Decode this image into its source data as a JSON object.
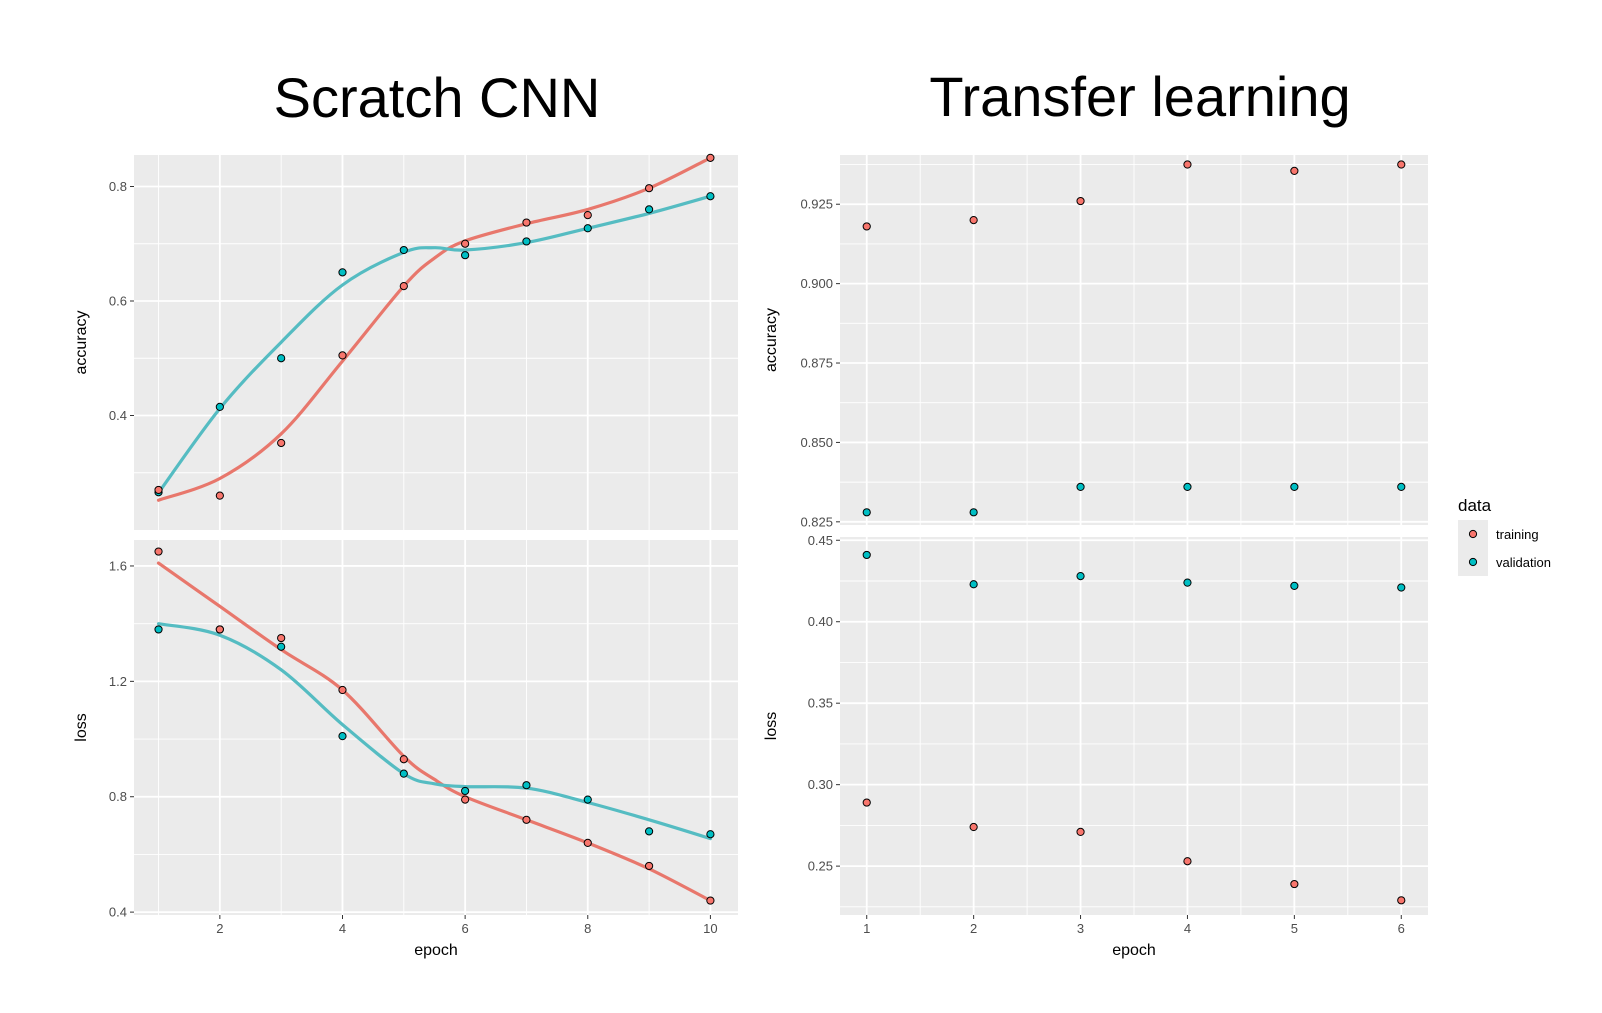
{
  "colors": {
    "training": "#F8766D",
    "validation": "#00BFC4",
    "training_line": "#E8776C",
    "validation_line": "#55BCC2"
  },
  "legend": {
    "title": "data",
    "entries": [
      "training",
      "validation"
    ]
  },
  "chart_data": [
    {
      "type": "scatter",
      "title": "Scratch CNN",
      "xlabel": "epoch",
      "smooth": true,
      "xlim": [
        0.6,
        10.45
      ],
      "xticks": [
        2,
        4,
        6,
        8,
        10
      ],
      "xtick_labels": [
        "2",
        "4",
        "6",
        "8",
        "10"
      ],
      "facets": [
        {
          "ylabel": "accuracy",
          "ylim": [
            0.2,
            0.855
          ],
          "yticks": [
            0.4,
            0.6,
            0.8
          ],
          "ytick_labels": [
            "0.4",
            "0.6",
            "0.8"
          ],
          "series": [
            {
              "name": "training",
              "x": [
                1,
                2,
                3,
                4,
                5,
                6,
                7,
                8,
                9,
                10
              ],
              "y": [
                0.27,
                0.26,
                0.352,
                0.505,
                0.626,
                0.7,
                0.737,
                0.75,
                0.797,
                0.85
              ]
            },
            {
              "name": "validation",
              "x": [
                1,
                2,
                3,
                4,
                5,
                6,
                7,
                8,
                9,
                10
              ],
              "y": [
                0.266,
                0.415,
                0.5,
                0.65,
                0.689,
                0.68,
                0.704,
                0.727,
                0.76,
                0.783
              ]
            }
          ],
          "smooth_series": [
            {
              "name": "training",
              "x": [
                1,
                2,
                3,
                4,
                5,
                5.5,
                6,
                7,
                8,
                9,
                10
              ],
              "y": [
                0.252,
                0.29,
                0.368,
                0.495,
                0.626,
                0.675,
                0.705,
                0.735,
                0.76,
                0.797,
                0.85
              ]
            },
            {
              "name": "validation",
              "x": [
                1,
                2,
                3,
                4,
                5,
                5.5,
                6,
                7,
                8,
                9,
                10
              ],
              "y": [
                0.265,
                0.412,
                0.528,
                0.628,
                0.685,
                0.693,
                0.689,
                0.702,
                0.727,
                0.753,
                0.783
              ]
            }
          ]
        },
        {
          "ylabel": "loss",
          "ylim": [
            0.39,
            1.69
          ],
          "yticks": [
            0.4,
            0.8,
            1.2,
            1.6
          ],
          "ytick_labels": [
            "0.4",
            "0.8",
            "1.2",
            "1.6"
          ],
          "series": [
            {
              "name": "training",
              "x": [
                1,
                2,
                3,
                4,
                5,
                6,
                7,
                8,
                9,
                10
              ],
              "y": [
                1.65,
                1.38,
                1.35,
                1.17,
                0.93,
                0.79,
                0.72,
                0.64,
                0.56,
                0.44
              ]
            },
            {
              "name": "validation",
              "x": [
                1,
                2,
                3,
                4,
                5,
                6,
                7,
                8,
                9,
                10
              ],
              "y": [
                1.38,
                1.38,
                1.32,
                1.01,
                0.88,
                0.82,
                0.84,
                0.79,
                0.68,
                0.67
              ]
            }
          ],
          "smooth_series": [
            {
              "name": "training",
              "x": [
                1,
                2,
                3,
                4,
                5,
                5.5,
                6,
                7,
                8,
                9,
                10
              ],
              "y": [
                1.61,
                1.46,
                1.31,
                1.17,
                0.94,
                0.86,
                0.8,
                0.72,
                0.64,
                0.55,
                0.44
              ]
            },
            {
              "name": "validation",
              "x": [
                1,
                2,
                3,
                4,
                5,
                5.5,
                6,
                7,
                8,
                9,
                10
              ],
              "y": [
                1.4,
                1.36,
                1.24,
                1.05,
                0.88,
                0.845,
                0.835,
                0.83,
                0.78,
                0.72,
                0.655
              ]
            }
          ]
        }
      ]
    },
    {
      "type": "scatter",
      "title": "Transfer learning",
      "xlabel": "epoch",
      "smooth": false,
      "xlim": [
        0.75,
        6.25
      ],
      "xticks": [
        1,
        2,
        3,
        4,
        5,
        6
      ],
      "xtick_labels": [
        "1",
        "2",
        "3",
        "4",
        "5",
        "6"
      ],
      "facets": [
        {
          "ylabel": "accuracy",
          "ylim": [
            0.824,
            0.9405
          ],
          "yticks": [
            0.825,
            0.85,
            0.875,
            0.9,
            0.925
          ],
          "ytick_labels": [
            "0.825",
            "0.850",
            "0.875",
            "0.900",
            "0.925"
          ],
          "series": [
            {
              "name": "training",
              "x": [
                1,
                2,
                3,
                4,
                5,
                6
              ],
              "y": [
                0.918,
                0.92,
                0.926,
                0.9375,
                0.9355,
                0.9375
              ]
            },
            {
              "name": "validation",
              "x": [
                1,
                2,
                3,
                4,
                5,
                6
              ],
              "y": [
                0.828,
                0.828,
                0.836,
                0.836,
                0.836,
                0.836
              ]
            }
          ]
        },
        {
          "ylabel": "loss",
          "ylim": [
            0.22,
            0.452
          ],
          "yticks": [
            0.25,
            0.3,
            0.35,
            0.4,
            0.45
          ],
          "ytick_labels": [
            "0.25",
            "0.30",
            "0.35",
            "0.40",
            "0.45"
          ],
          "series": [
            {
              "name": "training",
              "x": [
                1,
                2,
                3,
                4,
                5,
                6
              ],
              "y": [
                0.289,
                0.274,
                0.271,
                0.253,
                0.239,
                0.229
              ]
            },
            {
              "name": "validation",
              "x": [
                1,
                2,
                3,
                4,
                5,
                6
              ],
              "y": [
                0.441,
                0.423,
                0.428,
                0.424,
                0.422,
                0.421
              ]
            }
          ]
        }
      ]
    }
  ]
}
